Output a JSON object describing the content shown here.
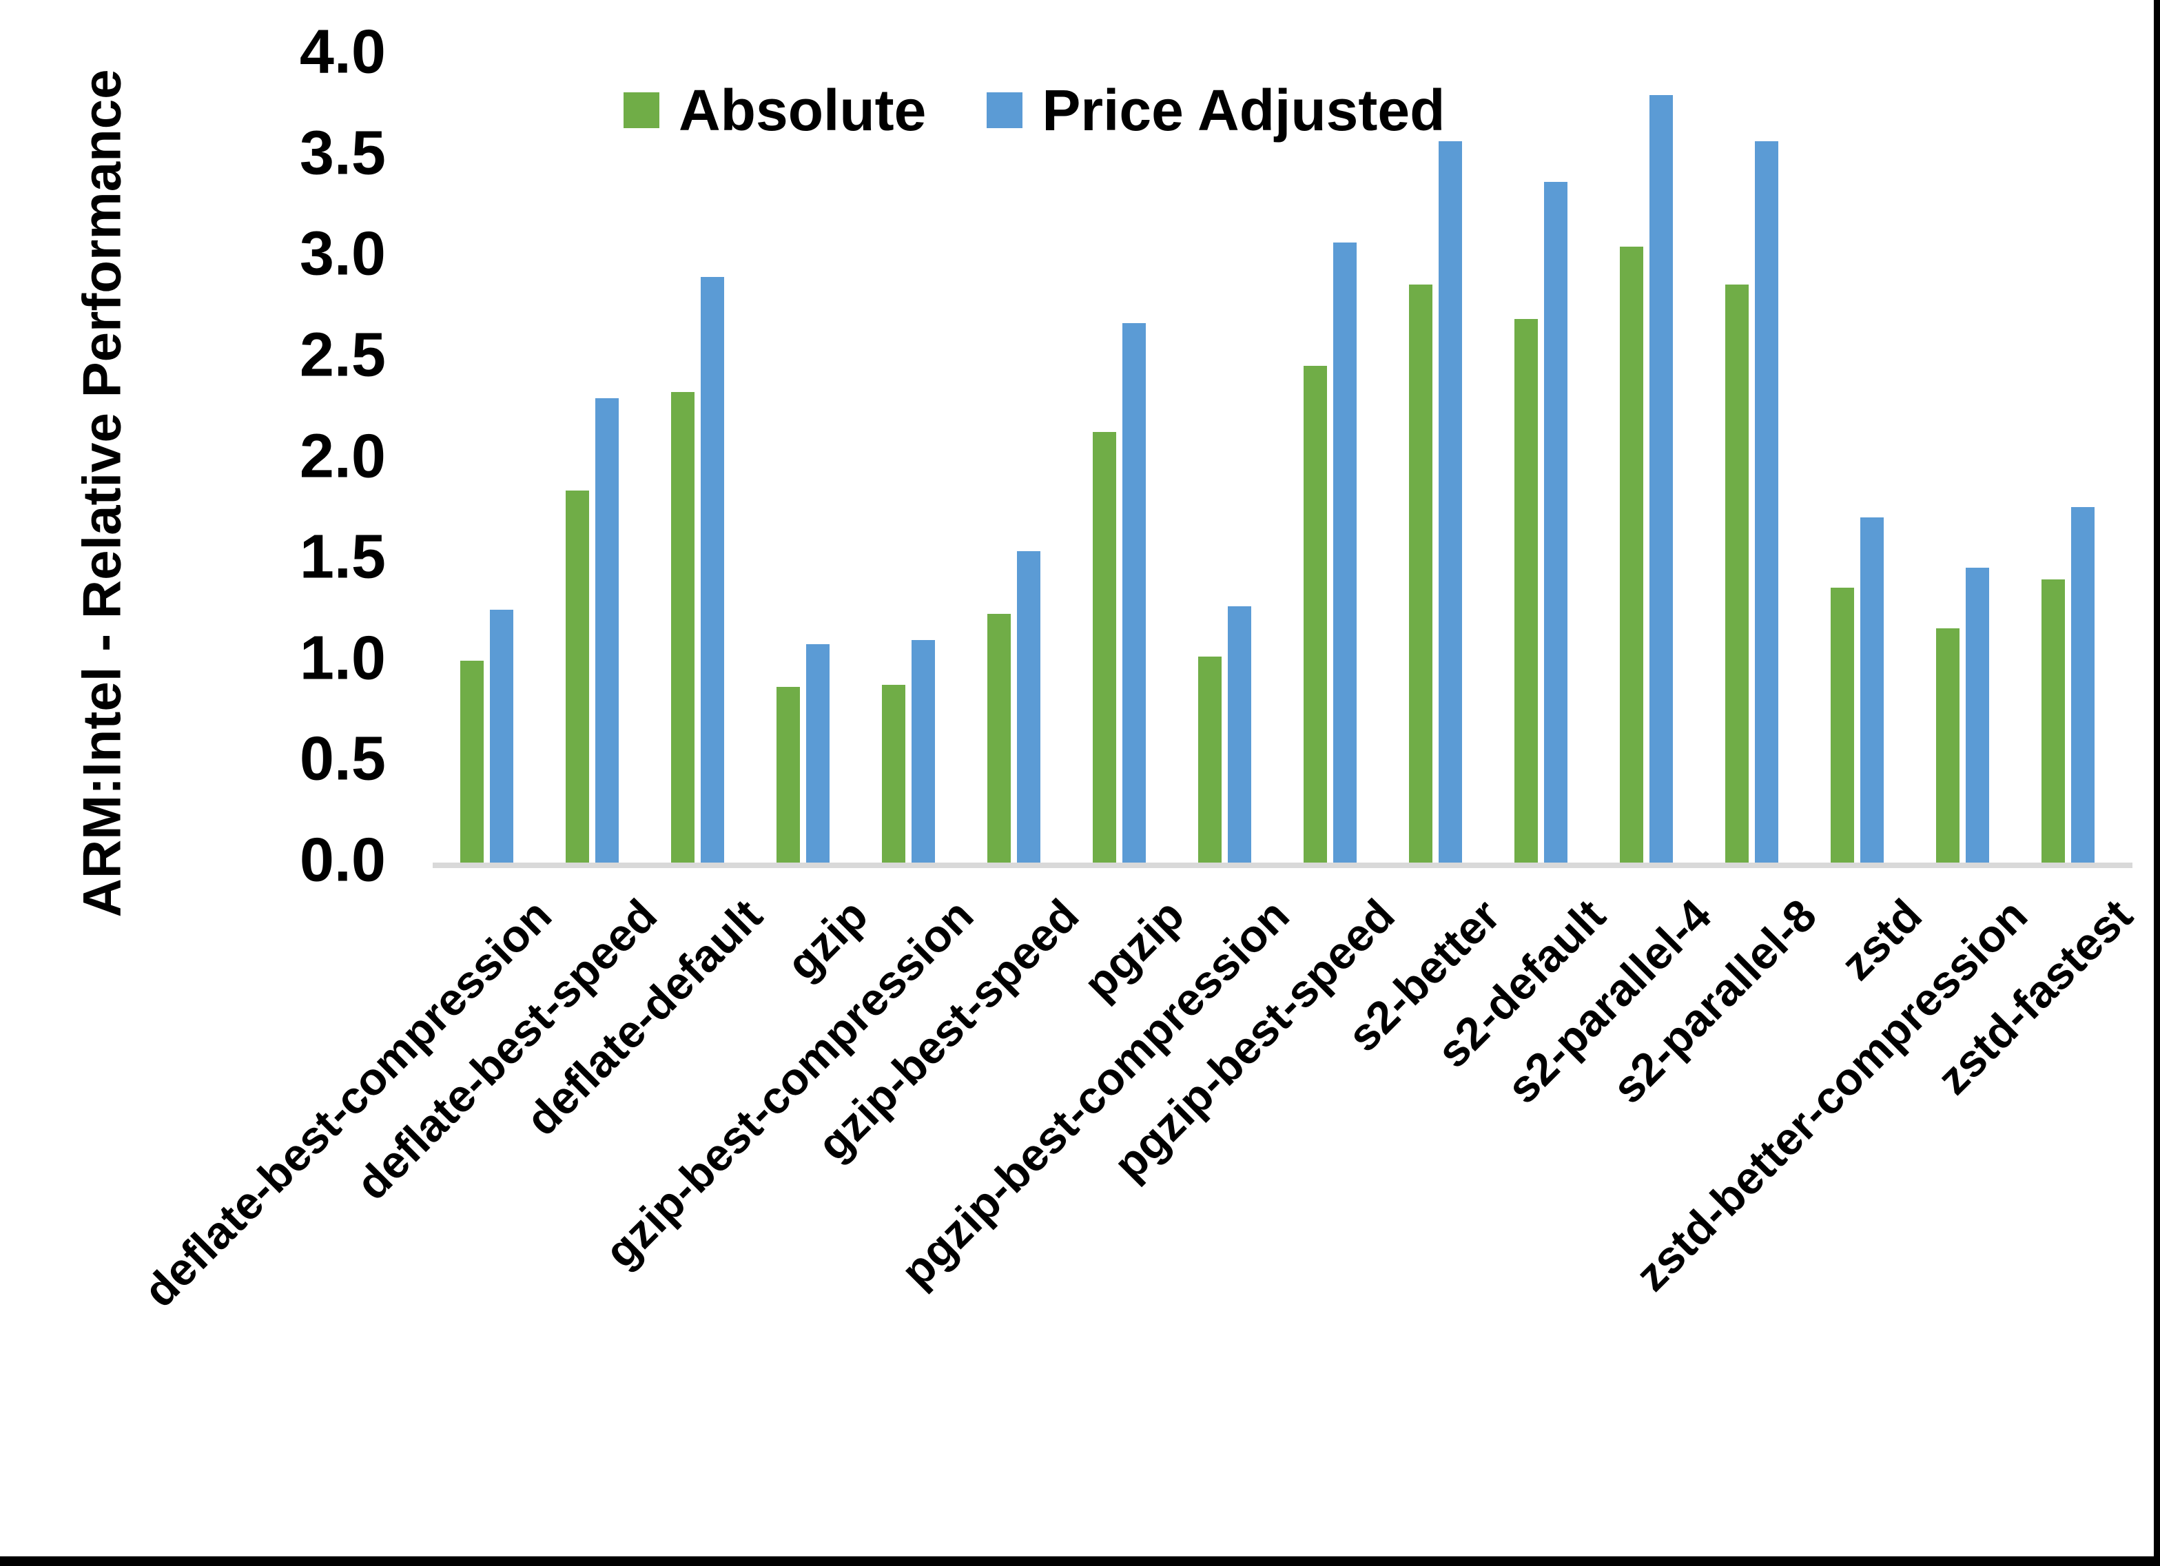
{
  "chart_data": {
    "type": "bar",
    "title": "",
    "ylabel": "ARM:Intel - Relative Performance",
    "xlabel": "",
    "ylim": [
      0.0,
      4.0
    ],
    "ytick_step": 0.5,
    "yticks": [
      "4.0",
      "3.5",
      "3.0",
      "2.5",
      "2.0",
      "1.5",
      "1.0",
      "0.5",
      "0.0"
    ],
    "grid": false,
    "legend_position": "top-center",
    "categories": [
      "deflate-best-compression",
      "deflate-best-speed",
      "deflate-default",
      "gzip",
      "gzip-best-compression",
      "gzip-best-speed",
      "pgzip",
      "pgzip-best-compression",
      "pgzip-best-speed",
      "s2-better",
      "s2-default",
      "s2-parallel-4",
      "s2-parallel-8",
      "zstd",
      "zstd-better-compression",
      "zstd-fastest"
    ],
    "series": [
      {
        "name": "Absolute",
        "color": "#70AD47",
        "values": [
          1.0,
          1.84,
          2.33,
          0.87,
          0.88,
          1.23,
          2.13,
          1.02,
          2.46,
          2.86,
          2.69,
          3.05,
          2.86,
          1.36,
          1.16,
          1.4
        ]
      },
      {
        "name": "Price Adjusted",
        "color": "#5B9BD5",
        "values": [
          1.25,
          2.3,
          2.9,
          1.08,
          1.1,
          1.54,
          2.67,
          1.27,
          3.07,
          3.57,
          3.37,
          3.8,
          3.57,
          1.71,
          1.46,
          1.76
        ]
      }
    ]
  },
  "colors": {
    "background": "#ffffff",
    "axis_line": "#d9d9d9",
    "text": "#000000",
    "frame_border": "#000000"
  }
}
